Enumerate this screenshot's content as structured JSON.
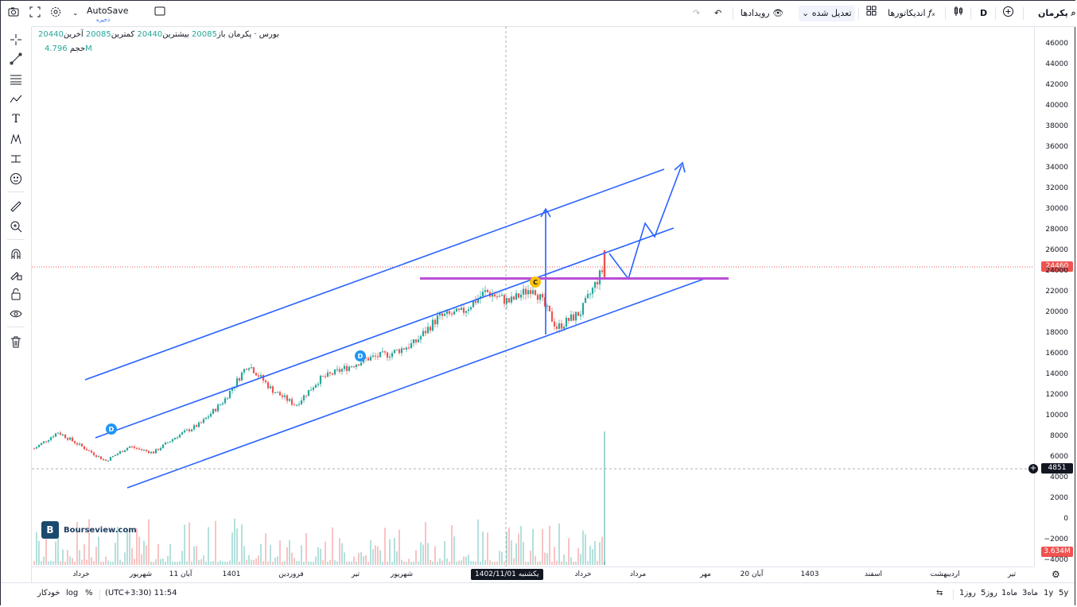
{
  "topbar": {
    "symbol": "پکرمان",
    "interval": "D",
    "indicators_label": "اندیکاتورها",
    "adjust_label": "تعدیل شده",
    "events_label": "رویدادها",
    "autosave_label": "AutoSave",
    "autosave_sub": "ذخیره",
    "icons": [
      "camera-icon",
      "fullscreen-icon",
      "settings-icon",
      "chevron-down-icon",
      "window-icon",
      "redo-icon",
      "undo-icon",
      "eye-icon",
      "chevron-down-icon",
      "layout-icon",
      "fx-icon",
      "candles-icon",
      "plus-circle-icon",
      "search-icon"
    ]
  },
  "legend": {
    "symbol_line": "بورس · پکرمان",
    "open_label": "باز",
    "open_value": "20085",
    "high_label": "بیشترین",
    "high_value": "20440",
    "low_label": "کمترین",
    "low_value": "20085",
    "close_label": "آخرین",
    "close_value": "20440",
    "volume_label": "حجم",
    "volume_value": "4.796M"
  },
  "price_axis": {
    "labels": [
      "46000",
      "44000",
      "42000",
      "40000",
      "38000",
      "36000",
      "34000",
      "32000",
      "30000",
      "28000",
      "26000",
      "24000",
      "22000",
      "20000",
      "18000",
      "16000",
      "14000",
      "12000",
      "10000",
      "8000",
      "6000",
      "4000",
      "2000",
      "0",
      "−2000",
      "−4000"
    ],
    "last_price_badge": "24460",
    "cursor_price_badge": "4851",
    "volume_badge": "3.634M"
  },
  "time_axis": {
    "labels": [
      "خرداد",
      "شهریور",
      "11 آبان",
      "1401",
      "فروردین",
      "تیر",
      "شهریور",
      "یکشنبه 1402/11/01",
      "خرداد",
      "مرداد",
      "مهر",
      "20 آبان",
      "1403",
      "اسفند",
      "اردیبهشت",
      "تیر"
    ],
    "crosshair_date": "یکشنبه 1402/11/01"
  },
  "bottombar": {
    "ranges": [
      "5y",
      "1y",
      "3ماه",
      "1ماه",
      "5روز",
      "1روز"
    ],
    "timezone": "(UTC+3:30) 11:54",
    "percent_label": "%",
    "log_label": "log",
    "auto_label": "خودکار"
  },
  "watermark": {
    "logo_letter": "B",
    "site": "Bourseview.com"
  },
  "markers": {
    "dividend": "D",
    "capital": "C"
  },
  "colors": {
    "up": "#26a69a",
    "down": "#ef5350",
    "drawing": "#2962ff",
    "support": "#b84fd6",
    "last_price": "#ef5350",
    "badge_dark": "#131722"
  },
  "chart_data": {
    "type": "candlestick",
    "y_range": [
      -4000,
      46000
    ],
    "x_labels": [
      "خرداد",
      "شهریور",
      "11 آبان",
      "1401",
      "فروردین",
      "تیر",
      "شهریور",
      "خرداد",
      "مرداد",
      "مهر",
      "20 آبان",
      "1403",
      "اسفند",
      "اردیبهشت",
      "تیر"
    ],
    "approx_closes": [
      6800,
      8400,
      7000,
      5600,
      7000,
      6400,
      8000,
      9200,
      11500,
      15000,
      12500,
      11000,
      13500,
      14500,
      15500,
      16000,
      17000,
      19500,
      20000,
      22000,
      21000,
      22500,
      18500,
      20000,
      24460
    ],
    "last_price": 24460,
    "cursor_price": 4851
  }
}
